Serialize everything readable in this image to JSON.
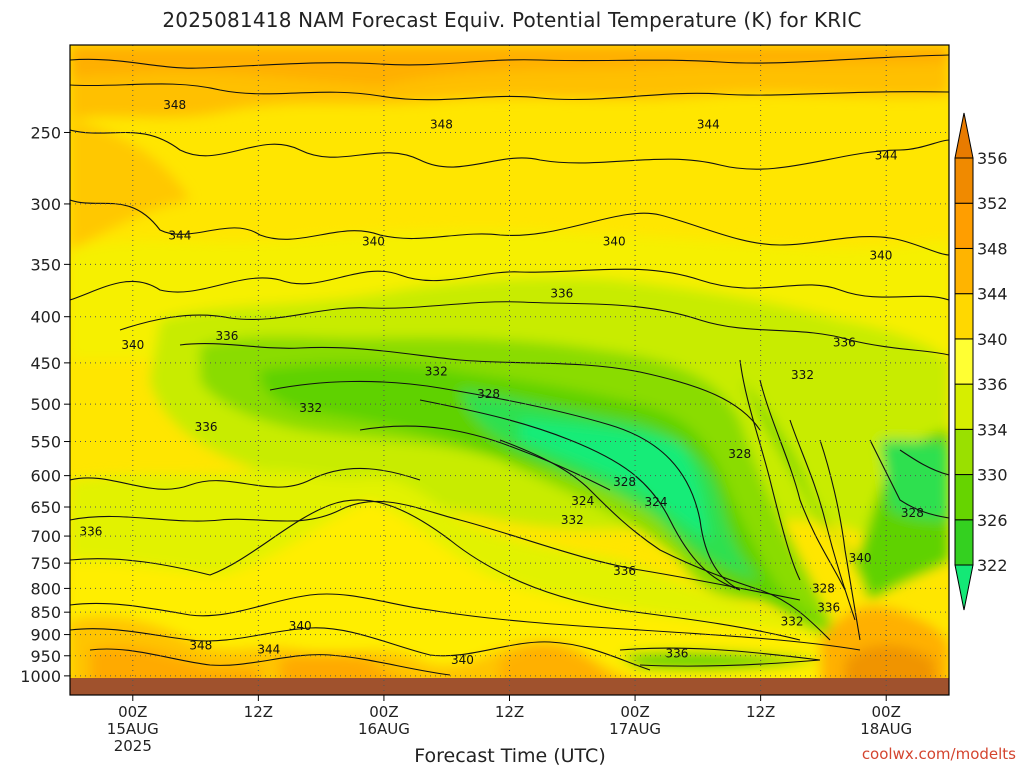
{
  "title": "2025081418 NAM Forecast Equiv. Potential Temperature (K) for KRIC",
  "watermark": "coolwx.com/modelts",
  "chart_data": {
    "type": "heatmap",
    "title": "2025081418 NAM Forecast Equiv. Potential Temperature (K) for KRIC",
    "xlabel": "Forecast Time (UTC)",
    "ylabel": "",
    "y_scale": "log",
    "y_reversed": true,
    "ylim": [
      1050,
      200
    ],
    "y_ticks": [
      250,
      300,
      350,
      400,
      450,
      500,
      550,
      600,
      650,
      700,
      750,
      800,
      850,
      900,
      950,
      1000
    ],
    "x_ticks": [
      {
        "hours": 6,
        "line1": "00Z",
        "line2": "15AUG",
        "line3": "2025"
      },
      {
        "hours": 18,
        "line1": "12Z",
        "line2": "",
        "line3": ""
      },
      {
        "hours": 30,
        "line1": "00Z",
        "line2": "16AUG",
        "line3": ""
      },
      {
        "hours": 42,
        "line1": "12Z",
        "line2": "",
        "line3": ""
      },
      {
        "hours": 54,
        "line1": "00Z",
        "line2": "17AUG",
        "line3": ""
      },
      {
        "hours": 66,
        "line1": "12Z",
        "line2": "",
        "line3": ""
      },
      {
        "hours": 78,
        "line1": "00Z",
        "line2": "18AUG",
        "line3": ""
      }
    ],
    "xlim_hours": [
      0,
      84
    ],
    "grid": true,
    "colorbar": {
      "labels": [
        322,
        326,
        330,
        334,
        336,
        340,
        344,
        348,
        352,
        356
      ],
      "colors": [
        "#14e876",
        "#34d020",
        "#66d400",
        "#9ae000",
        "#d6ee00",
        "#ffff33",
        "#ffd800",
        "#ffb400",
        "#ff9e00",
        "#f08a00",
        "#e87b00"
      ]
    },
    "contour_labels": [
      {
        "t": 10,
        "p": 233,
        "v": "348"
      },
      {
        "t": 35.5,
        "p": 245,
        "v": "348"
      },
      {
        "t": 61,
        "p": 245,
        "v": "344"
      },
      {
        "t": 78,
        "p": 265,
        "v": "344"
      },
      {
        "t": 10.5,
        "p": 325,
        "v": "344"
      },
      {
        "t": 29,
        "p": 330,
        "v": "340"
      },
      {
        "t": 52,
        "p": 330,
        "v": "340"
      },
      {
        "t": 77.5,
        "p": 342,
        "v": "340"
      },
      {
        "t": 47,
        "p": 377,
        "v": "336"
      },
      {
        "t": 6,
        "p": 430,
        "v": "340"
      },
      {
        "t": 15,
        "p": 420,
        "v": "336"
      },
      {
        "t": 74,
        "p": 427,
        "v": "336"
      },
      {
        "t": 70,
        "p": 464,
        "v": "332"
      },
      {
        "t": 35,
        "p": 460,
        "v": "332"
      },
      {
        "t": 40,
        "p": 487,
        "v": "328"
      },
      {
        "t": 23,
        "p": 505,
        "v": "332"
      },
      {
        "t": 13,
        "p": 530,
        "v": "336"
      },
      {
        "t": 64,
        "p": 568,
        "v": "328"
      },
      {
        "t": 53,
        "p": 610,
        "v": "328"
      },
      {
        "t": 49,
        "p": 640,
        "v": "324"
      },
      {
        "t": 56,
        "p": 642,
        "v": "324"
      },
      {
        "t": 48,
        "p": 672,
        "v": "332"
      },
      {
        "t": 2,
        "p": 692,
        "v": "336"
      },
      {
        "t": 80.5,
        "p": 660,
        "v": "328"
      },
      {
        "t": 75.5,
        "p": 740,
        "v": "340"
      },
      {
        "t": 53,
        "p": 765,
        "v": "336"
      },
      {
        "t": 72,
        "p": 800,
        "v": "328"
      },
      {
        "t": 72.5,
        "p": 840,
        "v": "336"
      },
      {
        "t": 69,
        "p": 870,
        "v": "332"
      },
      {
        "t": 22,
        "p": 880,
        "v": "340"
      },
      {
        "t": 12.5,
        "p": 925,
        "v": "348"
      },
      {
        "t": 19,
        "p": 935,
        "v": "344"
      },
      {
        "t": 37.5,
        "p": 960,
        "v": "340"
      },
      {
        "t": 58,
        "p": 945,
        "v": "336"
      }
    ]
  }
}
